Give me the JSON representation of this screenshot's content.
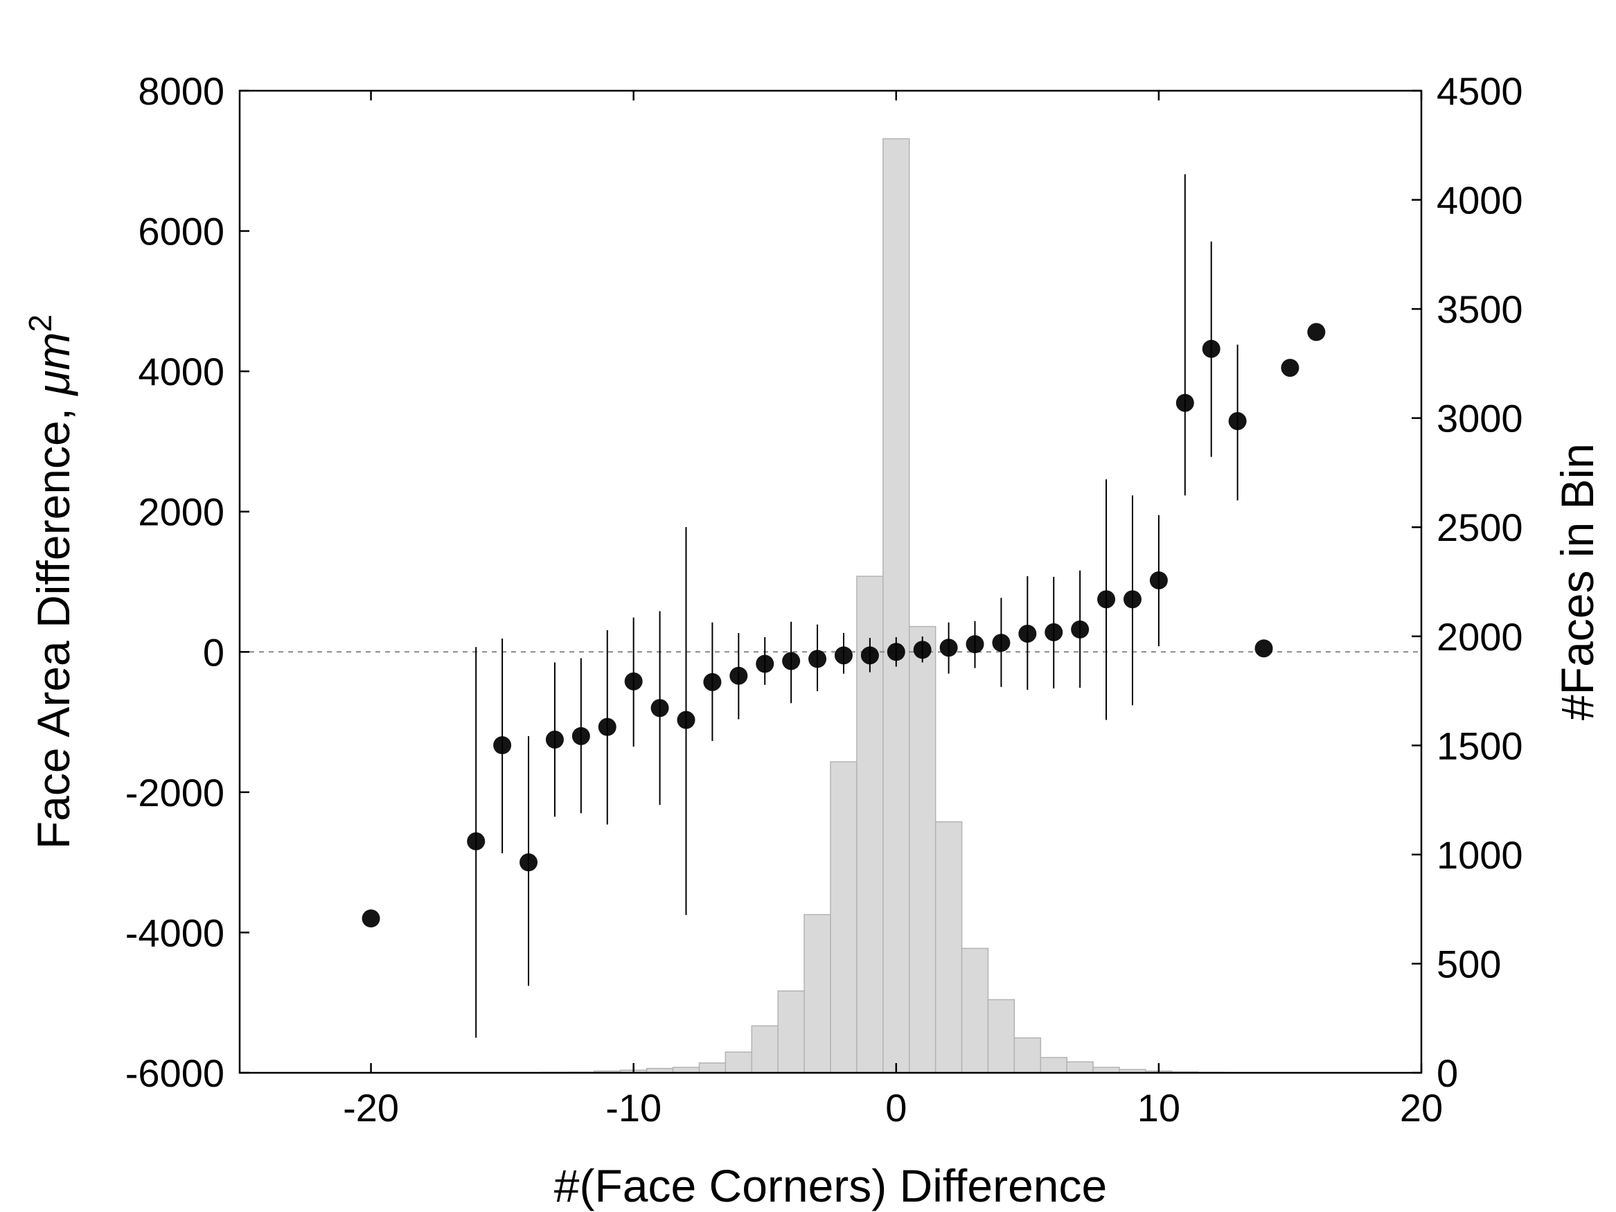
{
  "chart_data": {
    "type": "scatter",
    "title": "",
    "xlabel": "#(Face Corners) Difference",
    "ylabel": "Face Area Difference, ",
    "ylabel_unit": "μm",
    "ylabel_exp": "2",
    "y2label": "#Faces in Bin",
    "xlim": [
      -25,
      20
    ],
    "ylim": [
      -6000,
      8000
    ],
    "y2lim": [
      0,
      4500
    ],
    "xticks": [
      -20,
      -10,
      0,
      10,
      20
    ],
    "yticks": [
      -6000,
      -4000,
      -2000,
      0,
      2000,
      4000,
      6000,
      8000
    ],
    "y2ticks": [
      0,
      500,
      1000,
      1500,
      2000,
      2500,
      3000,
      3500,
      4000,
      4500
    ],
    "grid": false,
    "reference_line_y": 0,
    "histogram": {
      "name": "#Faces in Bin",
      "color": "#d9d9d9",
      "bin_width": 1,
      "x": [
        -13,
        -12,
        -11,
        -10,
        -9,
        -8,
        -7,
        -6,
        -5,
        -4,
        -3,
        -2,
        -1,
        0,
        1,
        2,
        3,
        4,
        5,
        6,
        7,
        8,
        9,
        10,
        11,
        12
      ],
      "counts": [
        2,
        3,
        8,
        12,
        20,
        25,
        45,
        95,
        215,
        375,
        725,
        1425,
        2275,
        4280,
        2045,
        1150,
        570,
        335,
        160,
        70,
        50,
        25,
        15,
        8,
        4,
        2
      ]
    },
    "series": [
      {
        "name": "Face Area Difference",
        "color": "#000000",
        "x": [
          -20,
          -16,
          -15,
          -14,
          -13,
          -12,
          -11,
          -10,
          -9,
          -8,
          -7,
          -6,
          -5,
          -4,
          -3,
          -2,
          -1,
          0,
          1,
          2,
          3,
          4,
          5,
          6,
          7,
          8,
          9,
          10,
          11,
          12,
          13,
          14,
          15,
          16
        ],
        "y": [
          -3800,
          -2700,
          -1330,
          -3000,
          -1250,
          -1200,
          -1070,
          -420,
          -800,
          -970,
          -430,
          -340,
          -170,
          -130,
          -100,
          -50,
          -50,
          0,
          30,
          60,
          110,
          130,
          260,
          280,
          320,
          750,
          750,
          1020,
          3550,
          4320,
          3290,
          50,
          4050,
          4560
        ],
        "err_low": [
          null,
          -5500,
          -2870,
          -4760,
          -2350,
          -2300,
          -2460,
          -1350,
          -2180,
          -3750,
          -1270,
          -960,
          -470,
          -730,
          -560,
          -310,
          -290,
          -210,
          -150,
          -310,
          -230,
          -500,
          -540,
          -520,
          -510,
          -970,
          -760,
          80,
          2230,
          2780,
          2160,
          null,
          null,
          null
        ],
        "err_high": [
          null,
          70,
          190,
          -1200,
          -150,
          -90,
          310,
          490,
          580,
          1780,
          420,
          270,
          210,
          430,
          390,
          270,
          200,
          210,
          220,
          420,
          440,
          770,
          1080,
          1070,
          1160,
          2460,
          2230,
          1950,
          6810,
          5850,
          4380,
          null,
          null,
          null
        ]
      }
    ]
  }
}
